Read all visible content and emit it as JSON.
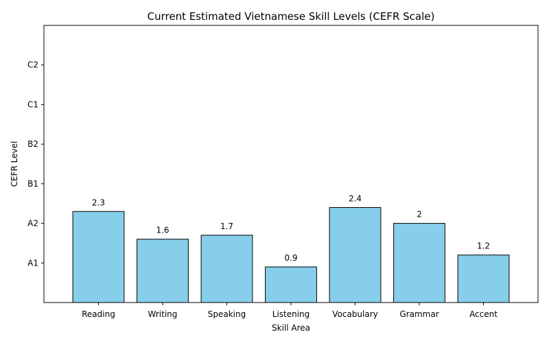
{
  "chart_data": {
    "type": "bar",
    "title": "Current Estimated Vietnamese Skill Levels (CEFR Scale)",
    "xlabel": "Skill Area",
    "ylabel": "CEFR Level",
    "categories": [
      "Reading",
      "Writing",
      "Speaking",
      "Listening",
      "Vocabulary",
      "Grammar",
      "Accent"
    ],
    "values": [
      2.3,
      1.6,
      1.7,
      0.9,
      2.4,
      2,
      1.2
    ],
    "data_labels": [
      "2.3",
      "1.6",
      "1.7",
      "0.9",
      "2.4",
      "2",
      "1.2"
    ],
    "ylim": [
      0,
      7
    ],
    "yticks": [
      1,
      2,
      3,
      4,
      5,
      6
    ],
    "ytick_labels": [
      "A1",
      "A2",
      "B1",
      "B2",
      "C1",
      "C2"
    ],
    "grid": false,
    "bar_color": "#87ceeb",
    "edge_color": "#000000"
  }
}
